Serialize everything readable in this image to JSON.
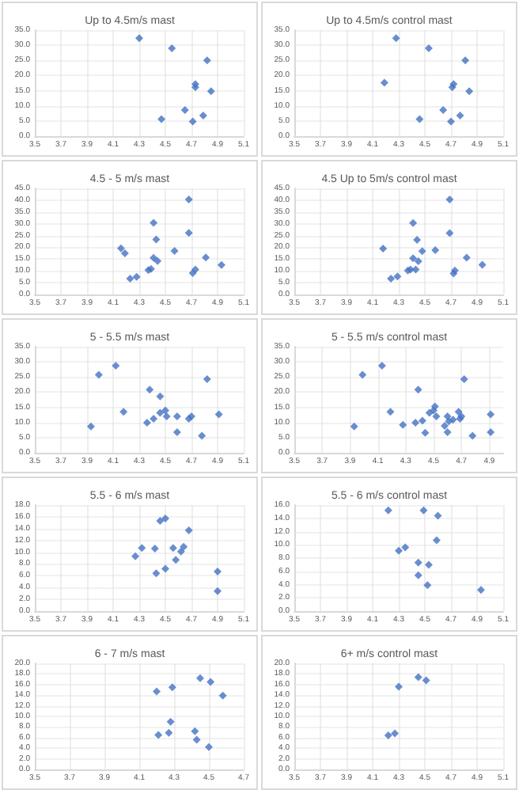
{
  "chart_data": [
    {
      "type": "scatter",
      "title": "Up to 4.5m/s mast",
      "color": "#4472c4",
      "marker": "diamond",
      "grid": true,
      "x": [
        4.3,
        4.55,
        4.82,
        4.73,
        4.73,
        4.85,
        4.65,
        4.79,
        4.47,
        4.71
      ],
      "values": [
        32.3,
        29.0,
        25.0,
        17.2,
        16.1,
        14.8,
        8.6,
        6.8,
        5.6,
        4.8
      ],
      "xlim": [
        3.5,
        5.1
      ],
      "xticks": [
        3.5,
        3.7,
        3.9,
        4.1,
        4.3,
        4.5,
        4.7,
        4.9,
        5.1
      ],
      "ylim": [
        0,
        35
      ],
      "yticks": [
        {
          "value": 0,
          "label": "0.0"
        },
        {
          "value": 5,
          "label": "5.0"
        },
        {
          "value": 10,
          "label": "10.0"
        },
        {
          "value": 15,
          "label": "15.0"
        },
        {
          "value": 20,
          "label": "20.0"
        },
        {
          "value": 25,
          "label": "25.0"
        },
        {
          "value": 30,
          "label": "30.0"
        },
        {
          "value": 35,
          "label": "35.0"
        }
      ]
    },
    {
      "type": "scatter",
      "title": "Up to 4.5m/s control mast",
      "color": "#4472c4",
      "marker": "diamond",
      "grid": true,
      "x": [
        4.28,
        4.53,
        4.81,
        4.72,
        4.71,
        4.84,
        4.19,
        4.64,
        4.77,
        4.46,
        4.7
      ],
      "values": [
        32.3,
        29.0,
        25.0,
        17.2,
        16.1,
        14.8,
        17.6,
        8.6,
        6.8,
        5.6,
        4.8
      ],
      "xlim": [
        3.5,
        5.1
      ],
      "xticks": [
        3.5,
        3.7,
        3.9,
        4.1,
        4.3,
        4.5,
        4.7,
        4.9,
        5.1
      ],
      "ylim": [
        0,
        35
      ],
      "yticks": [
        {
          "value": 0,
          "label": "0.0"
        },
        {
          "value": 5,
          "label": "5.0"
        },
        {
          "value": 10,
          "label": "10.0"
        },
        {
          "value": 15,
          "label": "15.0"
        },
        {
          "value": 20,
          "label": "20.0"
        },
        {
          "value": 25,
          "label": "25.0"
        },
        {
          "value": 30,
          "label": "30.0"
        },
        {
          "value": 35,
          "label": "35.0"
        }
      ]
    },
    {
      "type": "scatter",
      "title": "4.5 - 5 m/s mast",
      "color": "#4472c4",
      "marker": "diamond",
      "grid": true,
      "x": [
        4.68,
        4.41,
        4.68,
        4.43,
        4.16,
        4.19,
        4.57,
        4.41,
        4.44,
        4.81,
        4.93,
        4.37,
        4.39,
        4.73,
        4.71,
        4.23,
        4.28
      ],
      "values": [
        40.3,
        30.4,
        26.1,
        23.3,
        19.6,
        17.5,
        18.5,
        15.5,
        14.2,
        15.7,
        12.5,
        10.3,
        10.8,
        10.6,
        9.1,
        6.7,
        7.5
      ],
      "xlim": [
        3.5,
        5.1
      ],
      "xticks": [
        3.5,
        3.7,
        3.9,
        4.1,
        4.3,
        4.5,
        4.7,
        4.9,
        5.1
      ],
      "ylim": [
        0,
        45
      ],
      "yticks": [
        {
          "value": 0,
          "label": "0.0"
        },
        {
          "value": 5,
          "label": "5.0"
        },
        {
          "value": 10,
          "label": "10.0"
        },
        {
          "value": 15,
          "label": "15.0"
        },
        {
          "value": 20,
          "label": "20.0"
        },
        {
          "value": 25,
          "label": "25.0"
        },
        {
          "value": 30,
          "label": "30.0"
        },
        {
          "value": 35,
          "label": "35.0"
        },
        {
          "value": 40,
          "label": "40.0"
        },
        {
          "value": 45,
          "label": "45.0"
        }
      ]
    },
    {
      "type": "scatter",
      "title": "4.5 Up to 5m/s control mast",
      "color": "#4472c4",
      "marker": "diamond",
      "grid": true,
      "x": [
        4.69,
        4.41,
        4.69,
        4.44,
        4.18,
        4.48,
        4.58,
        4.41,
        4.45,
        4.82,
        4.94,
        4.37,
        4.39,
        4.43,
        4.73,
        4.72,
        4.24,
        4.29
      ],
      "values": [
        40.3,
        30.3,
        26.0,
        23.2,
        19.5,
        18.4,
        18.8,
        15.4,
        14.1,
        15.6,
        12.6,
        10.2,
        10.6,
        10.6,
        10.2,
        8.9,
        6.7,
        7.6
      ],
      "xlim": [
        3.5,
        5.1
      ],
      "xticks": [
        3.5,
        3.7,
        3.9,
        4.1,
        4.3,
        4.5,
        4.7,
        4.9,
        5.1
      ],
      "ylim": [
        0,
        45
      ],
      "yticks": [
        {
          "value": 0,
          "label": "0.0"
        },
        {
          "value": 5,
          "label": "5.0"
        },
        {
          "value": 10,
          "label": "10.0"
        },
        {
          "value": 15,
          "label": "15.0"
        },
        {
          "value": 20,
          "label": "20.0"
        },
        {
          "value": 25,
          "label": "25.0"
        },
        {
          "value": 30,
          "label": "30.0"
        },
        {
          "value": 35,
          "label": "35.0"
        },
        {
          "value": 40,
          "label": "40.0"
        },
        {
          "value": 45,
          "label": "45.0"
        }
      ]
    },
    {
      "type": "scatter",
      "title": "5 - 5.5 m/s mast",
      "color": "#4472c4",
      "marker": "diamond",
      "grid": true,
      "x": [
        4.12,
        3.99,
        4.82,
        4.38,
        4.46,
        4.18,
        4.5,
        4.46,
        4.51,
        4.59,
        4.7,
        4.68,
        4.41,
        4.36,
        4.91,
        3.93,
        4.59,
        4.78
      ],
      "values": [
        28.7,
        25.7,
        24.3,
        20.8,
        18.6,
        13.5,
        14.0,
        13.2,
        12.0,
        12.0,
        12.0,
        11.2,
        11.2,
        9.9,
        12.7,
        8.7,
        6.8,
        5.6
      ],
      "xlim": [
        3.5,
        5.1
      ],
      "xticks": [
        3.5,
        3.7,
        3.9,
        4.1,
        4.3,
        4.5,
        4.7,
        4.9,
        5.1
      ],
      "ylim": [
        0,
        35
      ],
      "yticks": [
        {
          "value": 0,
          "label": "0.0"
        },
        {
          "value": 5,
          "label": "5.0"
        },
        {
          "value": 10,
          "label": "10.0"
        },
        {
          "value": 15,
          "label": "15.0"
        },
        {
          "value": 20,
          "label": "20.0"
        },
        {
          "value": 25,
          "label": "25.0"
        },
        {
          "value": 30,
          "label": "30.0"
        },
        {
          "value": 35,
          "label": "35.0"
        }
      ]
    },
    {
      "type": "scatter",
      "title": "5 - 5.5 m/s control mast",
      "color": "#4472c4",
      "marker": "diamond",
      "grid": true,
      "x": [
        4.13,
        3.99,
        4.72,
        4.39,
        4.51,
        4.5,
        4.47,
        4.52,
        4.68,
        4.6,
        4.7,
        4.69,
        4.64,
        4.61,
        4.42,
        4.37,
        4.28,
        4.58,
        4.19,
        4.91,
        3.93,
        4.44,
        4.6,
        4.91,
        4.78
      ],
      "values": [
        28.7,
        25.7,
        24.3,
        20.8,
        15.3,
        14.0,
        13.2,
        12.0,
        13.5,
        12.0,
        12.0,
        11.2,
        10.9,
        10.4,
        10.6,
        9.9,
        9.2,
        8.9,
        13.5,
        12.7,
        8.7,
        6.6,
        6.8,
        6.8,
        5.6
      ],
      "xlim": [
        3.5,
        5.0
      ],
      "xticks": [
        3.5,
        3.7,
        3.9,
        4.1,
        4.3,
        4.5,
        4.7,
        4.9
      ],
      "ylim": [
        0,
        35
      ],
      "yticks": [
        {
          "value": 0,
          "label": "0.0"
        },
        {
          "value": 5,
          "label": "5.0"
        },
        {
          "value": 10,
          "label": "10.0"
        },
        {
          "value": 15,
          "label": "15.0"
        },
        {
          "value": 20,
          "label": "20.0"
        },
        {
          "value": 25,
          "label": "25.0"
        },
        {
          "value": 30,
          "label": "30.0"
        },
        {
          "value": 35,
          "label": "35.0"
        }
      ]
    },
    {
      "type": "scatter",
      "title": "5.5 - 6 m/s mast",
      "color": "#4472c4",
      "marker": "diamond",
      "grid": true,
      "x": [
        4.5,
        4.46,
        4.68,
        4.32,
        4.42,
        4.56,
        4.64,
        4.62,
        4.27,
        4.58,
        4.5,
        4.43,
        4.9,
        4.9
      ],
      "values": [
        15.7,
        15.3,
        13.7,
        10.7,
        10.6,
        10.7,
        10.9,
        10.1,
        9.3,
        8.7,
        7.2,
        6.4,
        6.7,
        3.4
      ],
      "xlim": [
        3.5,
        5.1
      ],
      "xticks": [
        3.5,
        3.7,
        3.9,
        4.1,
        4.3,
        4.5,
        4.7,
        4.9,
        5.1
      ],
      "ylim": [
        0,
        18
      ],
      "yticks": [
        {
          "value": 0,
          "label": "0.0"
        },
        {
          "value": 2,
          "label": "2.0"
        },
        {
          "value": 4,
          "label": "4.0"
        },
        {
          "value": 6,
          "label": "6.0"
        },
        {
          "value": 8,
          "label": "8.0"
        },
        {
          "value": 10,
          "label": "10.0"
        },
        {
          "value": 12,
          "label": "12.0"
        },
        {
          "value": 14,
          "label": "14.0"
        },
        {
          "value": 16,
          "label": "16.0"
        },
        {
          "value": 18,
          "label": "18.0"
        }
      ]
    },
    {
      "type": "scatter",
      "title": "5.5 - 6 m/s control mast",
      "color": "#4472c4",
      "marker": "diamond",
      "grid": true,
      "x": [
        4.22,
        4.49,
        4.6,
        4.59,
        4.3,
        4.35,
        4.45,
        4.53,
        4.45,
        4.52,
        4.93
      ],
      "values": [
        15.2,
        15.2,
        14.4,
        10.7,
        9.1,
        9.6,
        7.3,
        7.0,
        5.4,
        3.9,
        3.2
      ],
      "xlim": [
        3.5,
        5.1
      ],
      "xticks": [
        3.5,
        3.7,
        3.9,
        4.1,
        4.3,
        4.5,
        4.7,
        4.9,
        5.1
      ],
      "ylim": [
        0,
        16
      ],
      "yticks": [
        {
          "value": 0,
          "label": "0.0"
        },
        {
          "value": 2,
          "label": "2.0"
        },
        {
          "value": 4,
          "label": "4.0"
        },
        {
          "value": 6,
          "label": "6.0"
        },
        {
          "value": 8,
          "label": "8.0"
        },
        {
          "value": 10,
          "label": "10.0"
        },
        {
          "value": 12,
          "label": "12.0"
        },
        {
          "value": 14,
          "label": "14.0"
        },
        {
          "value": 16,
          "label": "16.0"
        }
      ]
    },
    {
      "type": "scatter",
      "title": "6 - 7 m/s mast",
      "color": "#4472c4",
      "marker": "diamond",
      "grid": true,
      "x": [
        4.45,
        4.51,
        4.58,
        4.29,
        4.2,
        4.28,
        4.21,
        4.27,
        4.42,
        4.43,
        4.5
      ],
      "values": [
        17.2,
        16.5,
        13.9,
        15.5,
        14.7,
        9.0,
        6.5,
        6.9,
        7.2,
        5.6,
        4.2
      ],
      "xlim": [
        3.5,
        4.7
      ],
      "xticks": [
        3.5,
        3.7,
        3.9,
        4.1,
        4.3,
        4.5,
        4.7
      ],
      "ylim": [
        0,
        20
      ],
      "yticks": [
        {
          "value": 0,
          "label": "0.0"
        },
        {
          "value": 2,
          "label": "2.0"
        },
        {
          "value": 4,
          "label": "4.0"
        },
        {
          "value": 6,
          "label": "6.0"
        },
        {
          "value": 8,
          "label": "8.0"
        },
        {
          "value": 10,
          "label": "10.0"
        },
        {
          "value": 12,
          "label": "12.0"
        },
        {
          "value": 14,
          "label": "14.0"
        },
        {
          "value": 16,
          "label": "16.0"
        },
        {
          "value": 18,
          "label": "18.0"
        },
        {
          "value": 20,
          "label": "20.0"
        }
      ]
    },
    {
      "type": "scatter",
      "title": "6+ m/s control mast",
      "color": "#4472c4",
      "marker": "diamond",
      "grid": true,
      "x": [
        4.45,
        4.51,
        4.3,
        4.27,
        4.22
      ],
      "values": [
        17.4,
        16.8,
        15.6,
        6.8,
        6.4
      ],
      "xlim": [
        3.5,
        5.1
      ],
      "xticks": [
        3.5,
        3.7,
        3.9,
        4.1,
        4.3,
        4.5,
        4.7,
        4.9,
        5.1
      ],
      "ylim": [
        0,
        20
      ],
      "yticks": [
        {
          "value": 0,
          "label": "0.0"
        },
        {
          "value": 2,
          "label": "2.0"
        },
        {
          "value": 4,
          "label": "4.0"
        },
        {
          "value": 6,
          "label": "6.0"
        },
        {
          "value": 8,
          "label": "8.0"
        },
        {
          "value": 10,
          "label": "10.0"
        },
        {
          "value": 12,
          "label": "12.0"
        },
        {
          "value": 14,
          "label": "14.0"
        },
        {
          "value": 16,
          "label": "16.0"
        },
        {
          "value": 18,
          "label": "18.0"
        },
        {
          "value": 20,
          "label": "20.0"
        }
      ]
    }
  ]
}
